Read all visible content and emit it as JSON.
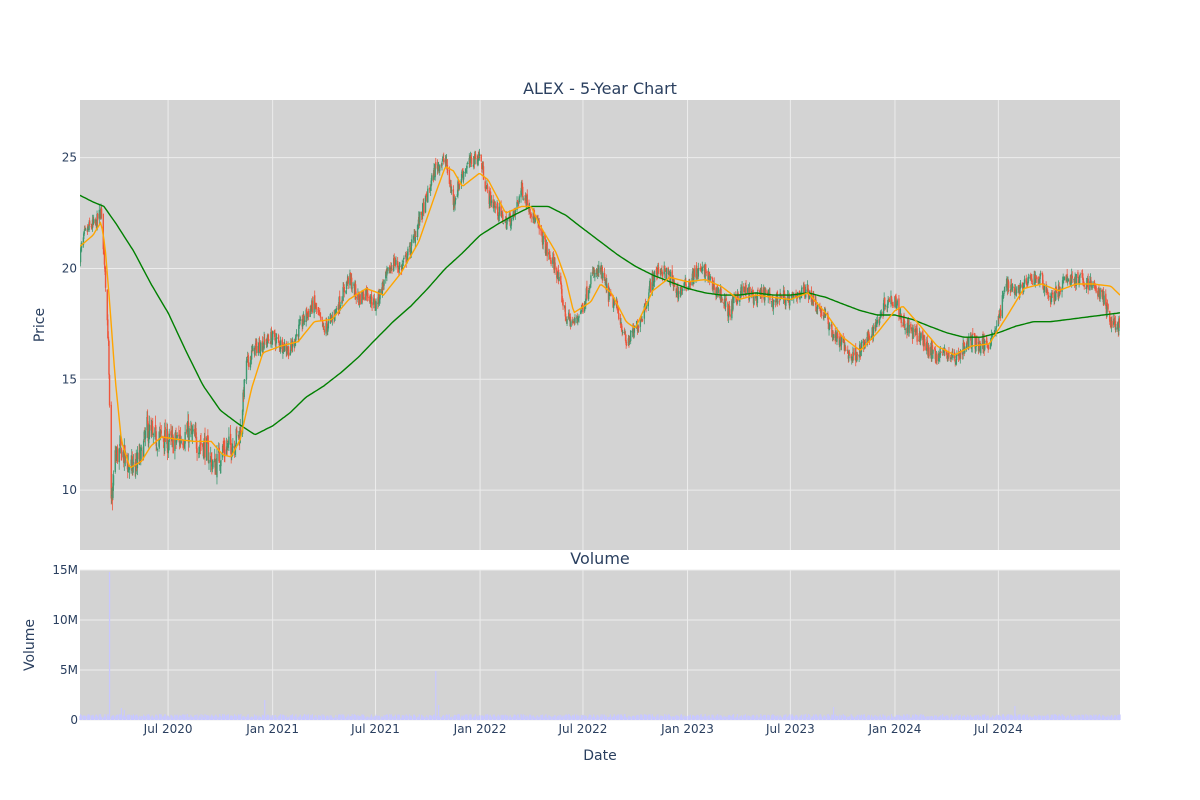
{
  "colors": {
    "plot_bg": "#d3d3d3",
    "grid": "#ececec",
    "text": "#2a3f5f",
    "increasing": "#3d9970",
    "decreasing": "#ef553b",
    "ma_short": "#ffa500",
    "ma_long": "#008000",
    "volume_bar": "#c8c8ff"
  },
  "chart_data": [
    {
      "type": "candlestick",
      "title": "ALEX - 5-Year Chart",
      "ylabel": "Price",
      "ylim": [
        7.3,
        27.6
      ],
      "xlim": [
        "2020-01-28",
        "2025-01-31"
      ],
      "y_ticks": [
        10,
        15,
        20,
        25
      ],
      "y_tick_labels": [
        "10",
        "15",
        "20",
        "25"
      ],
      "grid": true,
      "legend": "none",
      "approx_close_path": [
        [
          "2020-01-28",
          20.6
        ],
        [
          "2020-02-05",
          21.5
        ],
        [
          "2020-02-15",
          21.9
        ],
        [
          "2020-02-25",
          22.0
        ],
        [
          "2020-03-05",
          22.6
        ],
        [
          "2020-03-12",
          20.0
        ],
        [
          "2020-03-18",
          16.5
        ],
        [
          "2020-03-23",
          9.2
        ],
        [
          "2020-03-30",
          11.5
        ],
        [
          "2020-04-10",
          11.8
        ],
        [
          "2020-04-20",
          11.2
        ],
        [
          "2020-05-01",
          11.0
        ],
        [
          "2020-05-15",
          11.5
        ],
        [
          "2020-05-25",
          12.8
        ],
        [
          "2020-06-05",
          12.3
        ],
        [
          "2020-06-20",
          12.4
        ],
        [
          "2020-07-05",
          12.1
        ],
        [
          "2020-07-20",
          12.3
        ],
        [
          "2020-08-05",
          12.6
        ],
        [
          "2020-08-20",
          12.2
        ],
        [
          "2020-09-05",
          12.0
        ],
        [
          "2020-09-20",
          11.0
        ],
        [
          "2020-10-05",
          11.8
        ],
        [
          "2020-10-20",
          12.0
        ],
        [
          "2020-11-05",
          12.6
        ],
        [
          "2020-11-15",
          15.6
        ],
        [
          "2020-11-30",
          16.4
        ],
        [
          "2020-12-15",
          16.6
        ],
        [
          "2020-12-31",
          16.9
        ],
        [
          "2021-01-15",
          16.6
        ],
        [
          "2021-02-01",
          16.3
        ],
        [
          "2021-02-15",
          17.2
        ],
        [
          "2021-03-01",
          17.9
        ],
        [
          "2021-03-15",
          18.4
        ],
        [
          "2021-04-01",
          17.2
        ],
        [
          "2021-04-15",
          17.7
        ],
        [
          "2021-05-01",
          18.6
        ],
        [
          "2021-05-15",
          19.6
        ],
        [
          "2021-06-01",
          18.6
        ],
        [
          "2021-06-15",
          19.0
        ],
        [
          "2021-07-01",
          18.3
        ],
        [
          "2021-07-15",
          19.3
        ],
        [
          "2021-08-01",
          20.3
        ],
        [
          "2021-08-15",
          20.0
        ],
        [
          "2021-09-01",
          20.9
        ],
        [
          "2021-09-15",
          22.1
        ],
        [
          "2021-10-01",
          23.3
        ],
        [
          "2021-10-15",
          24.6
        ],
        [
          "2021-11-01",
          24.9
        ],
        [
          "2021-11-15",
          23.0
        ],
        [
          "2021-12-01",
          24.3
        ],
        [
          "2021-12-15",
          24.8
        ],
        [
          "2021-12-31",
          25.1
        ],
        [
          "2022-01-15",
          23.3
        ],
        [
          "2022-02-01",
          22.6
        ],
        [
          "2022-02-15",
          22.1
        ],
        [
          "2022-03-01",
          22.3
        ],
        [
          "2022-03-15",
          23.6
        ],
        [
          "2022-04-01",
          22.6
        ],
        [
          "2022-04-15",
          21.8
        ],
        [
          "2022-05-01",
          20.6
        ],
        [
          "2022-05-15",
          20.0
        ],
        [
          "2022-06-01",
          17.8
        ],
        [
          "2022-06-15",
          17.5
        ],
        [
          "2022-07-01",
          18.3
        ],
        [
          "2022-07-15",
          19.6
        ],
        [
          "2022-08-01",
          19.9
        ],
        [
          "2022-08-15",
          18.8
        ],
        [
          "2022-09-01",
          18.1
        ],
        [
          "2022-09-15",
          16.6
        ],
        [
          "2022-10-01",
          17.2
        ],
        [
          "2022-10-15",
          18.0
        ],
        [
          "2022-11-01",
          19.6
        ],
        [
          "2022-11-15",
          20.0
        ],
        [
          "2022-12-01",
          19.6
        ],
        [
          "2022-12-15",
          18.9
        ],
        [
          "2023-01-01",
          19.3
        ],
        [
          "2023-01-15",
          19.8
        ],
        [
          "2023-02-01",
          19.9
        ],
        [
          "2023-02-15",
          19.2
        ],
        [
          "2023-03-01",
          18.8
        ],
        [
          "2023-03-15",
          18.0
        ],
        [
          "2023-04-01",
          18.9
        ],
        [
          "2023-04-15",
          19.0
        ],
        [
          "2023-05-01",
          18.6
        ],
        [
          "2023-05-15",
          18.9
        ],
        [
          "2023-06-01",
          18.5
        ],
        [
          "2023-06-15",
          18.8
        ],
        [
          "2023-07-01",
          18.5
        ],
        [
          "2023-07-15",
          18.9
        ],
        [
          "2023-08-01",
          19.0
        ],
        [
          "2023-08-15",
          18.4
        ],
        [
          "2023-09-01",
          17.8
        ],
        [
          "2023-09-15",
          17.0
        ],
        [
          "2023-10-01",
          16.6
        ],
        [
          "2023-10-15",
          16.0
        ],
        [
          "2023-11-01",
          16.3
        ],
        [
          "2023-11-15",
          16.8
        ],
        [
          "2023-12-01",
          17.6
        ],
        [
          "2023-12-15",
          18.5
        ],
        [
          "2024-01-01",
          18.7
        ],
        [
          "2024-01-15",
          17.6
        ],
        [
          "2024-02-01",
          17.1
        ],
        [
          "2024-02-15",
          16.9
        ],
        [
          "2024-03-01",
          16.3
        ],
        [
          "2024-03-15",
          16.1
        ],
        [
          "2024-04-01",
          16.2
        ],
        [
          "2024-04-15",
          15.9
        ],
        [
          "2024-05-01",
          16.4
        ],
        [
          "2024-05-15",
          16.8
        ],
        [
          "2024-06-01",
          16.5
        ],
        [
          "2024-06-15",
          16.7
        ],
        [
          "2024-07-01",
          17.6
        ],
        [
          "2024-07-15",
          19.4
        ],
        [
          "2024-08-01",
          19.0
        ],
        [
          "2024-08-15",
          19.2
        ],
        [
          "2024-09-01",
          19.6
        ],
        [
          "2024-09-15",
          19.5
        ],
        [
          "2024-10-01",
          18.6
        ],
        [
          "2024-10-15",
          19.0
        ],
        [
          "2024-11-01",
          19.6
        ],
        [
          "2024-11-15",
          19.5
        ],
        [
          "2024-12-01",
          19.4
        ],
        [
          "2024-12-15",
          19.2
        ],
        [
          "2025-01-01",
          18.7
        ],
        [
          "2025-01-15",
          17.6
        ],
        [
          "2025-01-31",
          17.4
        ]
      ],
      "ma_short_path": [
        [
          "2020-01-28",
          21.0
        ],
        [
          "2020-02-20",
          21.5
        ],
        [
          "2020-03-05",
          22.1
        ],
        [
          "2020-03-12",
          21.0
        ],
        [
          "2020-03-20",
          18.5
        ],
        [
          "2020-03-30",
          15.0
        ],
        [
          "2020-04-10",
          12.2
        ],
        [
          "2020-04-25",
          11.0
        ],
        [
          "2020-05-15",
          11.3
        ],
        [
          "2020-06-01",
          12.0
        ],
        [
          "2020-06-20",
          12.4
        ],
        [
          "2020-07-15",
          12.3
        ],
        [
          "2020-08-15",
          12.2
        ],
        [
          "2020-09-15",
          12.2
        ],
        [
          "2020-10-05",
          11.6
        ],
        [
          "2020-10-20",
          11.5
        ],
        [
          "2020-11-05",
          12.3
        ],
        [
          "2020-11-25",
          14.6
        ],
        [
          "2020-12-15",
          16.2
        ],
        [
          "2021-01-15",
          16.5
        ],
        [
          "2021-02-15",
          16.7
        ],
        [
          "2021-03-15",
          17.6
        ],
        [
          "2021-04-15",
          17.7
        ],
        [
          "2021-05-15",
          18.6
        ],
        [
          "2021-06-15",
          19.1
        ],
        [
          "2021-07-15",
          18.8
        ],
        [
          "2021-08-15",
          19.8
        ],
        [
          "2021-09-15",
          21.2
        ],
        [
          "2021-10-15",
          23.4
        ],
        [
          "2021-11-01",
          24.6
        ],
        [
          "2021-11-15",
          24.4
        ],
        [
          "2021-12-01",
          23.7
        ],
        [
          "2021-12-31",
          24.3
        ],
        [
          "2022-01-15",
          24.0
        ],
        [
          "2022-02-15",
          22.5
        ],
        [
          "2022-03-15",
          22.8
        ],
        [
          "2022-04-01",
          22.8
        ],
        [
          "2022-04-15",
          22.0
        ],
        [
          "2022-05-15",
          20.7
        ],
        [
          "2022-06-01",
          19.5
        ],
        [
          "2022-06-15",
          18.0
        ],
        [
          "2022-07-15",
          18.5
        ],
        [
          "2022-08-01",
          19.3
        ],
        [
          "2022-08-20",
          18.9
        ],
        [
          "2022-09-15",
          17.6
        ],
        [
          "2022-10-01",
          17.3
        ],
        [
          "2022-11-01",
          19.0
        ],
        [
          "2022-12-01",
          19.6
        ],
        [
          "2023-01-01",
          19.4
        ],
        [
          "2023-02-01",
          19.5
        ],
        [
          "2023-03-01",
          19.2
        ],
        [
          "2023-04-01",
          18.6
        ],
        [
          "2023-05-01",
          18.8
        ],
        [
          "2023-06-01",
          18.7
        ],
        [
          "2023-07-01",
          18.6
        ],
        [
          "2023-08-01",
          18.9
        ],
        [
          "2023-09-01",
          18.0
        ],
        [
          "2023-10-01",
          16.9
        ],
        [
          "2023-11-01",
          16.3
        ],
        [
          "2023-12-01",
          17.1
        ],
        [
          "2024-01-01",
          18.1
        ],
        [
          "2024-01-15",
          18.3
        ],
        [
          "2024-02-15",
          17.4
        ],
        [
          "2024-03-15",
          16.5
        ],
        [
          "2024-04-15",
          16.1
        ],
        [
          "2024-05-15",
          16.5
        ],
        [
          "2024-06-15",
          16.6
        ],
        [
          "2024-07-15",
          17.8
        ],
        [
          "2024-08-15",
          19.1
        ],
        [
          "2024-09-15",
          19.3
        ],
        [
          "2024-10-15",
          19.0
        ],
        [
          "2024-11-15",
          19.3
        ],
        [
          "2024-12-15",
          19.3
        ],
        [
          "2025-01-15",
          19.2
        ],
        [
          "2025-01-31",
          18.8
        ]
      ],
      "ma_long_path": [
        [
          "2020-01-28",
          23.3
        ],
        [
          "2020-02-20",
          23.0
        ],
        [
          "2020-03-10",
          22.8
        ],
        [
          "2020-04-01",
          22.0
        ],
        [
          "2020-05-01",
          20.8
        ],
        [
          "2020-06-01",
          19.3
        ],
        [
          "2020-07-01",
          18.0
        ],
        [
          "2020-08-01",
          16.3
        ],
        [
          "2020-09-01",
          14.7
        ],
        [
          "2020-10-01",
          13.6
        ],
        [
          "2020-11-01",
          13.0
        ],
        [
          "2020-12-01",
          12.5
        ],
        [
          "2021-01-01",
          12.9
        ],
        [
          "2021-02-01",
          13.5
        ],
        [
          "2021-03-01",
          14.2
        ],
        [
          "2021-04-01",
          14.7
        ],
        [
          "2021-05-01",
          15.3
        ],
        [
          "2021-06-01",
          16.0
        ],
        [
          "2021-07-01",
          16.8
        ],
        [
          "2021-08-01",
          17.6
        ],
        [
          "2021-09-01",
          18.3
        ],
        [
          "2021-10-01",
          19.1
        ],
        [
          "2021-11-01",
          20.0
        ],
        [
          "2021-12-01",
          20.7
        ],
        [
          "2022-01-01",
          21.5
        ],
        [
          "2022-02-01",
          22.0
        ],
        [
          "2022-03-01",
          22.4
        ],
        [
          "2022-04-01",
          22.8
        ],
        [
          "2022-05-01",
          22.8
        ],
        [
          "2022-06-01",
          22.4
        ],
        [
          "2022-07-01",
          21.8
        ],
        [
          "2022-08-01",
          21.2
        ],
        [
          "2022-09-01",
          20.6
        ],
        [
          "2022-10-01",
          20.1
        ],
        [
          "2022-11-01",
          19.7
        ],
        [
          "2022-12-01",
          19.4
        ],
        [
          "2023-01-01",
          19.1
        ],
        [
          "2023-02-01",
          18.9
        ],
        [
          "2023-03-01",
          18.8
        ],
        [
          "2023-04-01",
          18.8
        ],
        [
          "2023-05-01",
          18.9
        ],
        [
          "2023-06-01",
          18.8
        ],
        [
          "2023-07-01",
          18.8
        ],
        [
          "2023-08-01",
          18.9
        ],
        [
          "2023-09-01",
          18.7
        ],
        [
          "2023-10-01",
          18.4
        ],
        [
          "2023-11-01",
          18.1
        ],
        [
          "2023-12-01",
          17.9
        ],
        [
          "2024-01-01",
          17.9
        ],
        [
          "2024-02-01",
          17.7
        ],
        [
          "2024-03-01",
          17.4
        ],
        [
          "2024-04-01",
          17.1
        ],
        [
          "2024-05-01",
          16.9
        ],
        [
          "2024-06-01",
          16.9
        ],
        [
          "2024-07-01",
          17.1
        ],
        [
          "2024-08-01",
          17.4
        ],
        [
          "2024-09-01",
          17.6
        ],
        [
          "2024-10-01",
          17.6
        ],
        [
          "2024-11-01",
          17.7
        ],
        [
          "2024-12-01",
          17.8
        ],
        [
          "2025-01-01",
          17.9
        ],
        [
          "2025-01-31",
          18.0
        ]
      ]
    },
    {
      "type": "bar",
      "title": "Volume",
      "ylabel": "Volume",
      "xlabel": "Date",
      "ylim": [
        0,
        15000000
      ],
      "y_ticks": [
        0,
        5000000,
        10000000,
        15000000
      ],
      "y_tick_labels": [
        "0",
        "5M",
        "10M",
        "15M"
      ],
      "x_tick_dates": [
        "2020-07-01",
        "2021-01-01",
        "2021-07-01",
        "2022-01-01",
        "2022-07-01",
        "2023-01-01",
        "2023-07-01",
        "2024-01-01",
        "2024-07-01"
      ],
      "x_tick_labels": [
        "Jul 2020",
        "Jan 2021",
        "Jul 2021",
        "Jan 2022",
        "Jul 2022",
        "Jan 2023",
        "Jul 2023",
        "Jan 2024",
        "Jul 2024"
      ],
      "baseline": 400000,
      "spikes": [
        [
          "2020-03-20",
          14800000
        ],
        [
          "2020-04-10",
          1200000
        ],
        [
          "2020-04-15",
          1000000
        ],
        [
          "2020-12-18",
          2000000
        ],
        [
          "2021-10-15",
          4900000
        ],
        [
          "2021-10-20",
          1500000
        ],
        [
          "2023-09-15",
          1300000
        ],
        [
          "2024-06-30",
          1300000
        ],
        [
          "2024-07-30",
          1400000
        ]
      ]
    }
  ]
}
